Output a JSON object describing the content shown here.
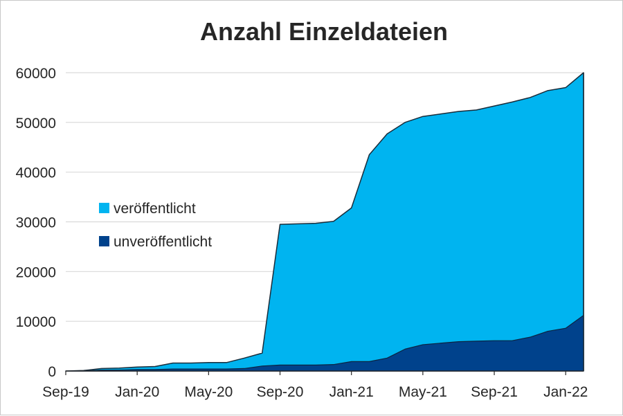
{
  "chart_data": {
    "type": "area",
    "stacked": true,
    "title": "Anzahl Einzeldateien",
    "xlabel": "",
    "ylabel": "",
    "ylim": [
      0,
      60000
    ],
    "yticks": [
      0,
      10000,
      20000,
      30000,
      40000,
      50000,
      60000
    ],
    "ytick_labels": [
      "0",
      "10000",
      "20000",
      "30000",
      "40000",
      "50000",
      "60000"
    ],
    "x": [
      "2019-09",
      "2019-10",
      "2019-11",
      "2019-12",
      "2020-01",
      "2020-02",
      "2020-03",
      "2020-04",
      "2020-05",
      "2020-06",
      "2020-07",
      "2020-08",
      "2020-09",
      "2020-10",
      "2020-11",
      "2020-12",
      "2021-01",
      "2021-02",
      "2021-03",
      "2021-04",
      "2021-05",
      "2021-06",
      "2021-07",
      "2021-08",
      "2021-09",
      "2021-10",
      "2021-11",
      "2021-12",
      "2022-01",
      "2022-02"
    ],
    "xticks": [
      "Sep-19",
      "Jan-20",
      "May-20",
      "Sep-20",
      "Jan-21",
      "May-21",
      "Sep-21",
      "Jan-22"
    ],
    "legend_position": "left",
    "grid": true,
    "series": [
      {
        "name": "unveröffentlicht",
        "color": "#00428c",
        "values": [
          0,
          0,
          200,
          200,
          300,
          300,
          400,
          400,
          400,
          400,
          500,
          1000,
          1200,
          1200,
          1200,
          1300,
          1900,
          1900,
          2600,
          4400,
          5300,
          5600,
          5900,
          6000,
          6100,
          6100,
          6800,
          8000,
          8600,
          11200
        ]
      },
      {
        "name": "veröffentlicht",
        "color": "#00b4f0",
        "values": [
          0,
          100,
          300,
          400,
          500,
          600,
          1200,
          1200,
          1300,
          1300,
          2100,
          2600,
          28300,
          28400,
          28500,
          28800,
          30900,
          41600,
          45100,
          45600,
          45900,
          46100,
          46300,
          46500,
          47200,
          48000,
          48200,
          48400,
          48400,
          48800
        ]
      }
    ]
  }
}
